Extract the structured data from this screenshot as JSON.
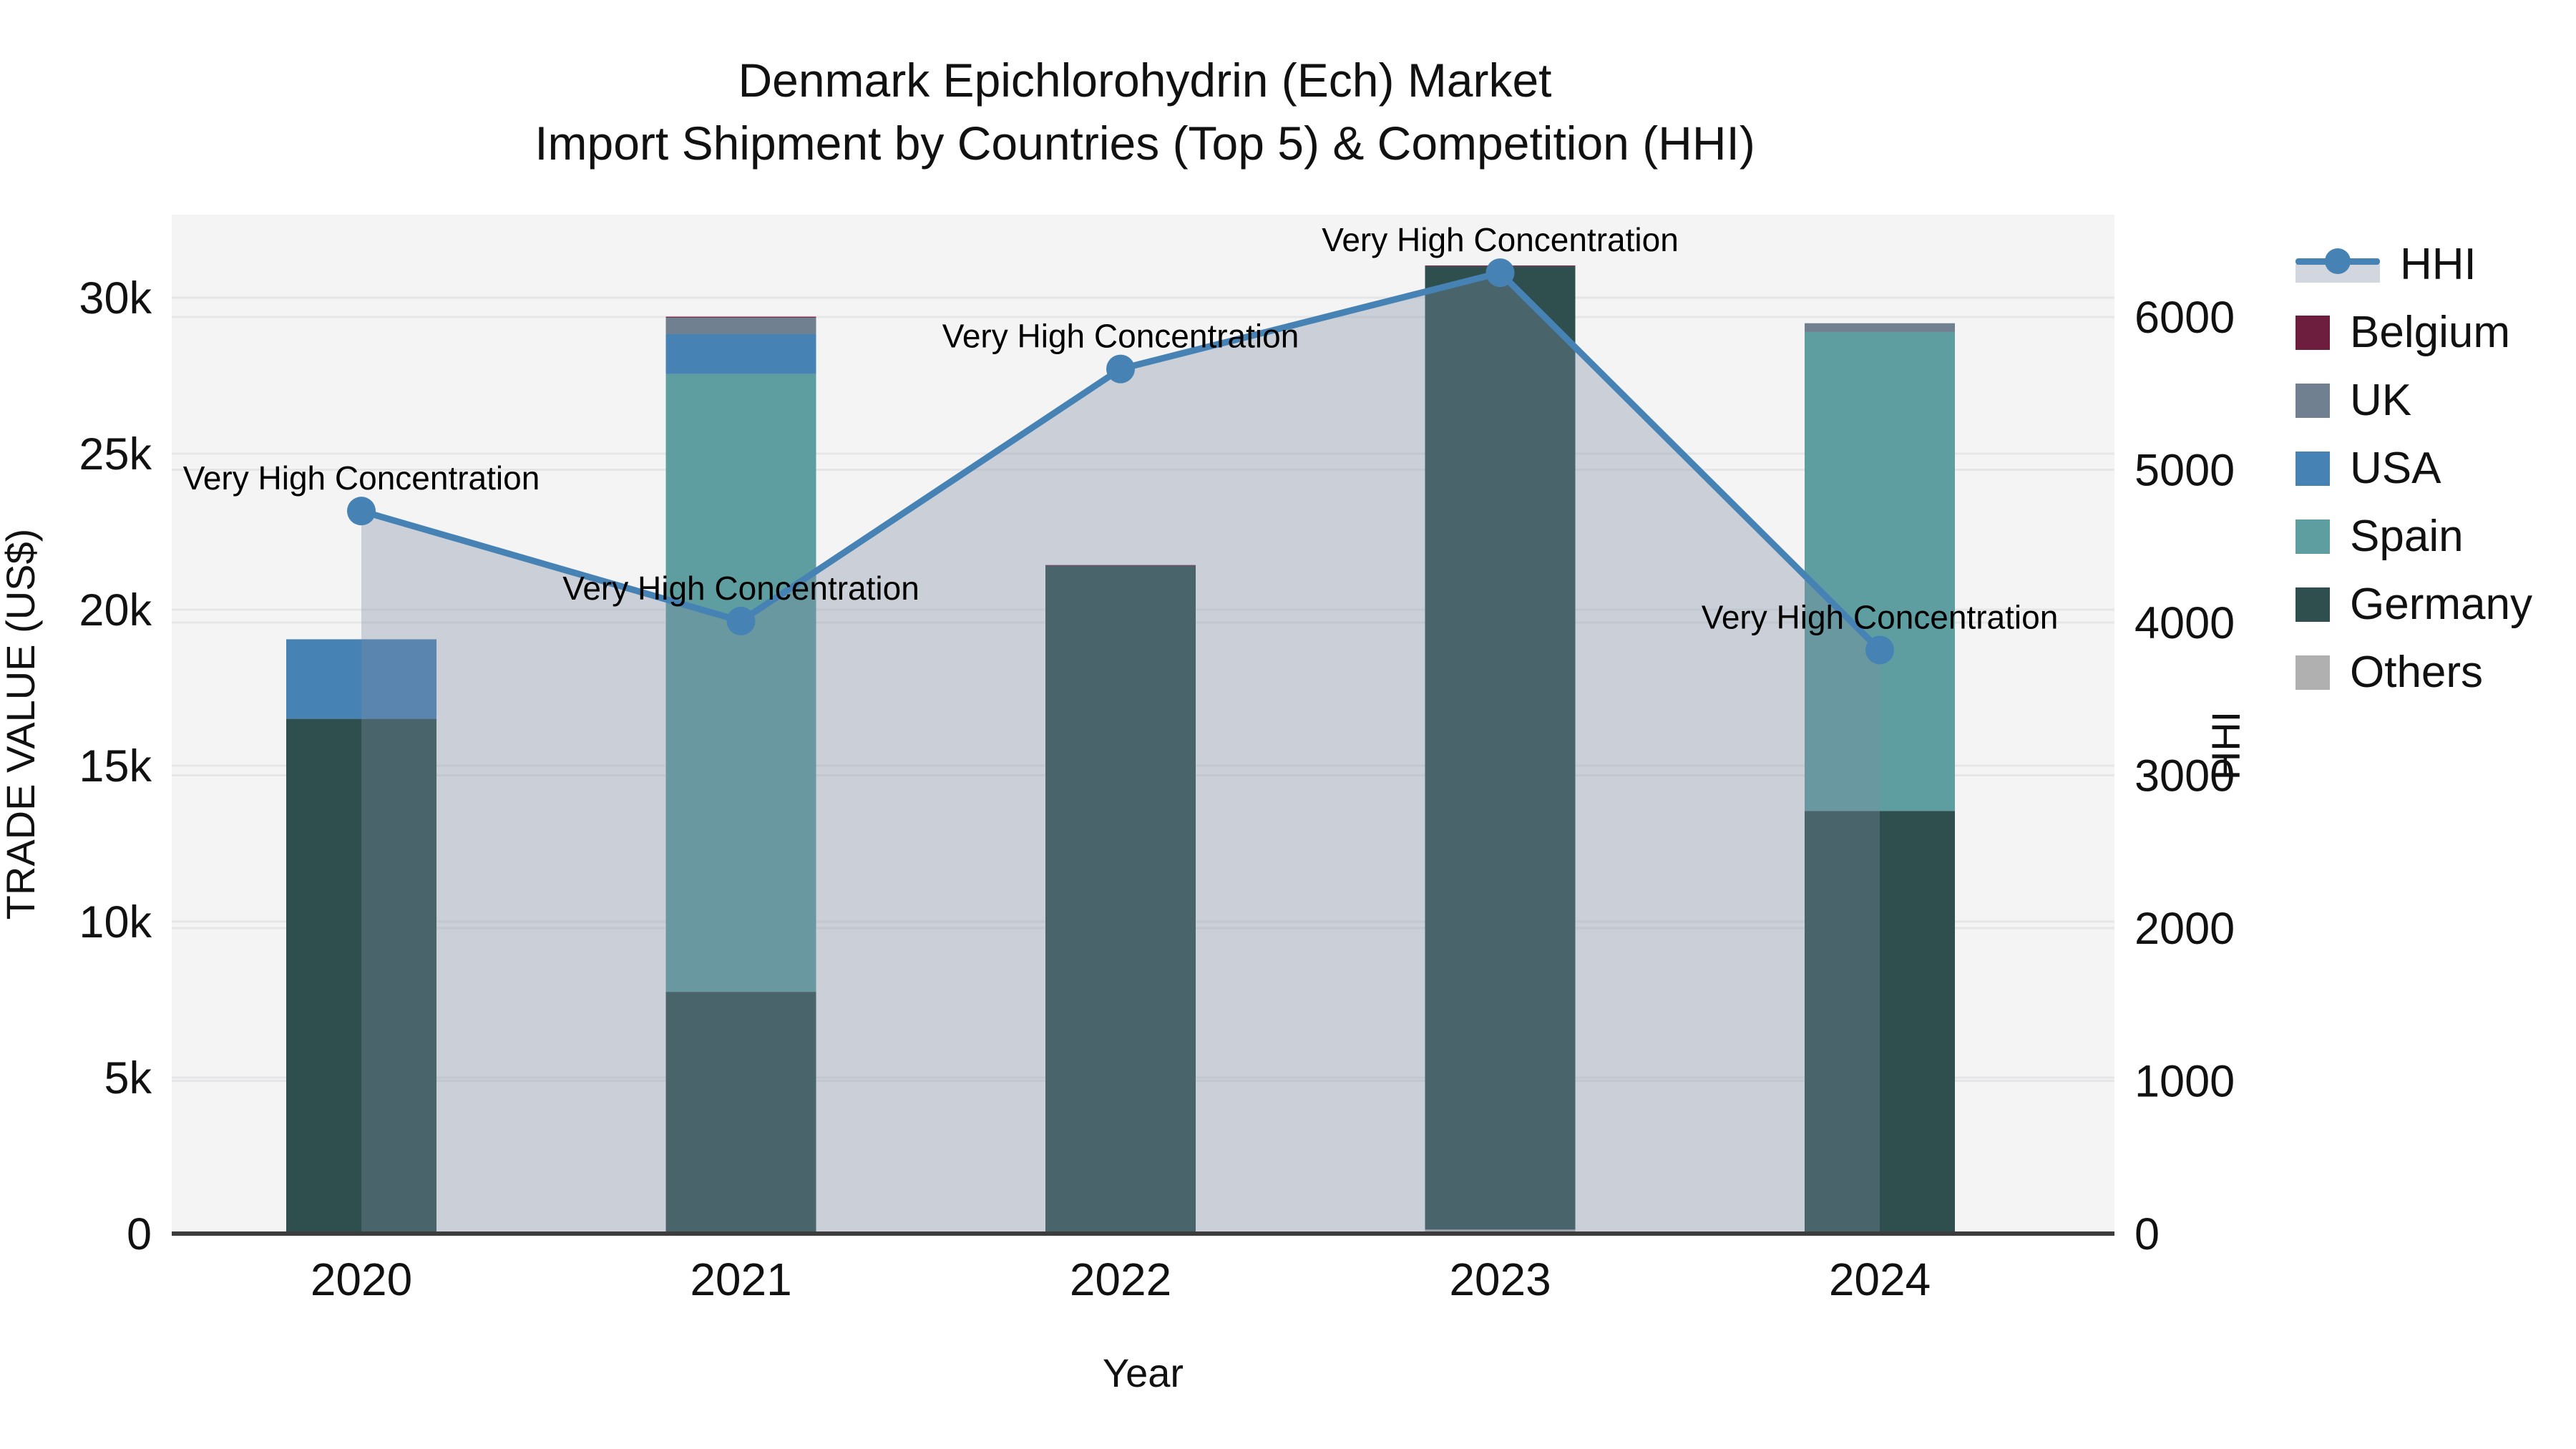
{
  "title": {
    "line1": "Denmark Epichlorohydrin (Ech) Market",
    "line2": "Import Shipment by Countries (Top 5) & Competition (HHI)"
  },
  "legend": {
    "items": [
      {
        "label": "HHI",
        "type": "line",
        "color": "#4682B4",
        "band_color": "rgba(125,140,164,0.35)"
      },
      {
        "label": "Belgium",
        "type": "swatch",
        "color": "#6D1E3E"
      },
      {
        "label": "UK",
        "type": "swatch",
        "color": "#708090"
      },
      {
        "label": "USA",
        "type": "swatch",
        "color": "#4682B4"
      },
      {
        "label": "Spain",
        "type": "swatch",
        "color": "#5F9EA0"
      },
      {
        "label": "Germany",
        "type": "swatch",
        "color": "#2F4F4F"
      },
      {
        "label": "Others",
        "type": "swatch",
        "color": "#B0B0B0"
      }
    ]
  },
  "chart_data": {
    "type": "bar",
    "subtype": "stacked-bars-with-line",
    "title": "Denmark Epichlorohydrin (Ech) Market — Import Shipment by Countries (Top 5) & Competition (HHI)",
    "xlabel": "Year",
    "ylabel_left": "TRADE VALUE (US$)",
    "ylabel_right": "HHI",
    "categories": [
      "2020",
      "2021",
      "2022",
      "2023",
      "2024"
    ],
    "stack_order": [
      "Others",
      "Germany",
      "Spain",
      "USA",
      "UK",
      "Belgium"
    ],
    "series": [
      {
        "name": "Belgium",
        "color": "#6D1E3E",
        "values": [
          0,
          30,
          30,
          30,
          0
        ]
      },
      {
        "name": "UK",
        "color": "#708090",
        "values": [
          0,
          530,
          0,
          0,
          280
        ]
      },
      {
        "name": "USA",
        "color": "#4682B4",
        "values": [
          2550,
          1280,
          0,
          0,
          0
        ]
      },
      {
        "name": "Spain",
        "color": "#5F9EA0",
        "values": [
          0,
          19800,
          0,
          0,
          15350
        ]
      },
      {
        "name": "Germany",
        "color": "#2F4F4F",
        "values": [
          16500,
          7750,
          21400,
          30870,
          13550
        ]
      },
      {
        "name": "Others",
        "color": "#B0B0B0",
        "values": [
          0,
          0,
          0,
          130,
          0
        ]
      }
    ],
    "hhi": {
      "name": "HHI",
      "color": "#4682B4",
      "area_fill": "rgba(125,140,164,0.35)",
      "values": [
        4730,
        4010,
        5660,
        6290,
        3820
      ],
      "annotation": "Very High Concentration"
    },
    "axes": {
      "left": {
        "ticks": [
          "0",
          "5k",
          "10k",
          "15k",
          "20k",
          "25k",
          "30k"
        ],
        "tick_values": [
          0,
          5000,
          10000,
          15000,
          20000,
          25000,
          30000
        ],
        "max": 32660
      },
      "right": {
        "ticks": [
          "0",
          "1000",
          "2000",
          "3000",
          "4000",
          "5000",
          "6000"
        ],
        "tick_values": [
          0,
          1000,
          2000,
          3000,
          4000,
          5000,
          6000
        ],
        "max": 6670
      }
    },
    "grid": true,
    "legend_position": "right"
  },
  "colors": {
    "plot_bg": "#f4f4f5",
    "gridline": "#e6e6e8",
    "axis_line": "#3c3c3c",
    "text": "#111111"
  }
}
